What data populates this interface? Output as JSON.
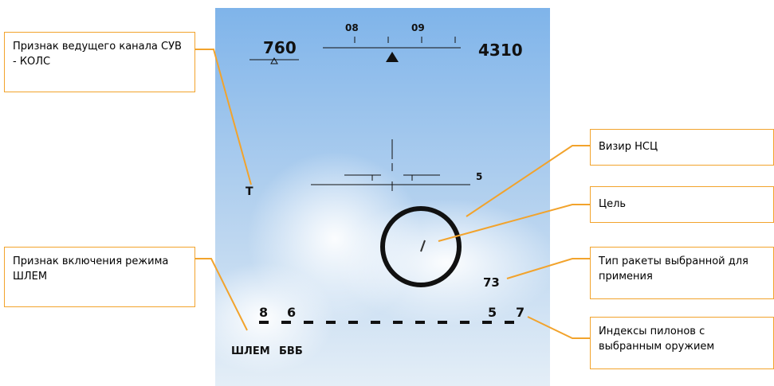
{
  "hud": {
    "speed": "760",
    "altitude": "4310",
    "heading_left": "08",
    "heading_right": "09",
    "pitch_mark": "5",
    "channel": "Т",
    "missile_type": "73",
    "pylons_left": [
      "8",
      "6"
    ],
    "pylons_right": [
      "5",
      "7"
    ],
    "mode_left": "ШЛЕМ",
    "mode_right": "БВБ"
  },
  "callouts": [
    "Признак ведущего канала СУВ - КОЛС",
    "Признак включения режима ШЛЕМ",
    "Визир НСЦ",
    "Цель",
    "Тип ракеты выбранной для примения",
    "Индексы пилонов с выбранным оружием"
  ]
}
